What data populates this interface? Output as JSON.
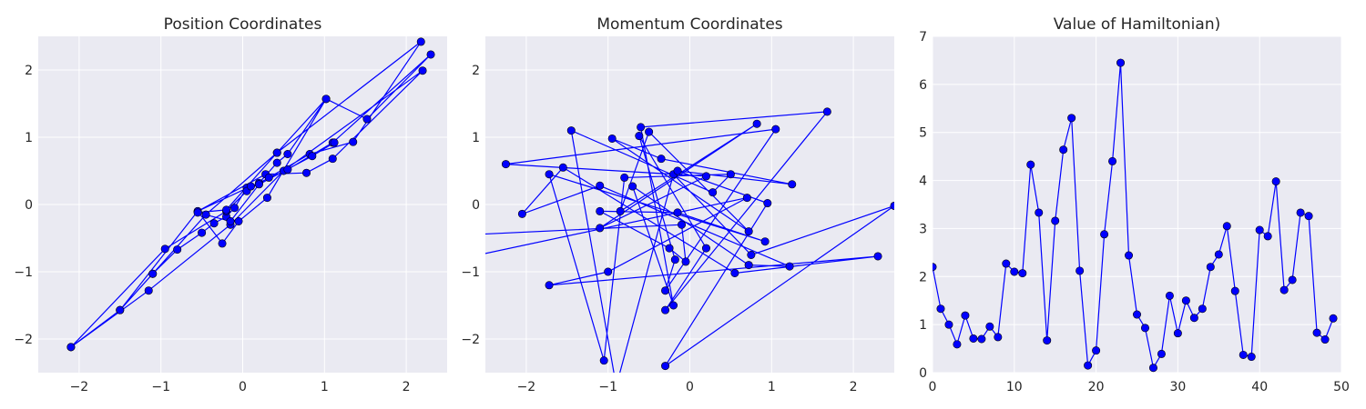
{
  "figure": {
    "line_color": "#0000ff",
    "marker_color": "#0000ff",
    "axes_background": "#eaeaf2",
    "grid_color": "#ffffff"
  },
  "chart_data": [
    {
      "type": "line",
      "title": "Position Coordinates",
      "xlabel": "",
      "ylabel": "",
      "xlim": [
        -2.5,
        2.5
      ],
      "ylim": [
        -2.5,
        2.5
      ],
      "xticks": [
        -2,
        -1,
        0,
        1,
        2
      ],
      "yticks": [
        -2,
        -1,
        0,
        1,
        2
      ],
      "xtick_labels": [
        "−2",
        "−1",
        "0",
        "1",
        "2"
      ],
      "ytick_labels": [
        "−2",
        "−1",
        "0",
        "1",
        "2"
      ],
      "grid": true,
      "x": [
        -2.1,
        -1.5,
        -1.1,
        -0.8,
        -0.5,
        -0.35,
        -0.2,
        -0.1,
        0.05,
        0.2,
        0.42,
        0.55,
        1.02,
        0.3,
        -0.05,
        -0.25,
        -0.55,
        0.28,
        0.78,
        1.1,
        2.2,
        0.5,
        -0.15,
        -1.15,
        -2.1,
        -0.95,
        -0.2,
        0.05,
        0.32,
        0.82,
        1.35,
        2.18,
        0.42,
        -0.45,
        -1.1,
        -1.5,
        -0.55,
        0.1,
        0.55,
        1.1,
        2.3,
        1.52,
        1.02,
        0.42,
        -0.2,
        -0.55,
        -0.15,
        0.2,
        0.85,
        1.12
      ],
      "y": [
        -2.12,
        -1.57,
        -1.03,
        -0.67,
        -0.42,
        -0.28,
        -0.18,
        -0.05,
        0.25,
        0.32,
        0.62,
        0.75,
        1.57,
        0.1,
        -0.25,
        -0.58,
        -0.1,
        0.45,
        0.47,
        0.68,
        1.99,
        0.5,
        -0.3,
        -1.28,
        -2.12,
        -0.66,
        -0.1,
        0.2,
        0.4,
        0.75,
        0.93,
        2.42,
        0.77,
        -0.15,
        -1.03,
        -1.57,
        -0.1,
        0.27,
        0.52,
        0.92,
        2.23,
        1.27,
        1.57,
        0.77,
        -0.08,
        -0.12,
        -0.25,
        0.3,
        0.72,
        0.92
      ]
    },
    {
      "type": "line",
      "title": "Momentum Coordinates",
      "xlabel": "",
      "ylabel": "",
      "xlim": [
        -2.5,
        2.5
      ],
      "ylim": [
        -2.5,
        2.5
      ],
      "xticks": [
        -2,
        -1,
        0,
        1,
        2
      ],
      "yticks": [
        -2,
        -1,
        0,
        1,
        2
      ],
      "xtick_labels": [
        "−2",
        "−1",
        "0",
        "1",
        "2"
      ],
      "ytick_labels": [
        "−2",
        "−1",
        "0",
        "1",
        "2"
      ],
      "grid": true,
      "x": [
        -2.7,
        -0.1,
        -0.05,
        -0.25,
        -1.1,
        -0.15,
        0.92,
        -1.72,
        -1.05,
        -0.8,
        0.5,
        0.28,
        -1.45,
        -0.9,
        -0.2,
        0.75,
        2.5,
        -0.3,
        0.95,
        -0.15,
        1.25,
        -0.35,
        -0.95,
        0.72,
        -0.5,
        -0.85,
        0.82,
        -1.1,
        0.2,
        -2.25,
        1.05,
        -0.3,
        -0.18,
        -0.62,
        0.2,
        -0.3,
        1.68,
        -0.6,
        -0.2,
        -0.7,
        0.72,
        1.22,
        -1.1,
        -2.05,
        -1.55,
        0.55,
        2.3,
        -1.72,
        -1.0,
        0.7,
        -2.7
      ],
      "y": [
        -0.45,
        -0.3,
        -0.85,
        -0.65,
        -0.1,
        -0.12,
        -0.55,
        0.45,
        -2.32,
        0.4,
        0.45,
        0.18,
        1.1,
        -2.7,
        0.45,
        -0.75,
        -0.02,
        -2.4,
        0.02,
        0.5,
        0.3,
        0.68,
        0.98,
        -0.4,
        1.08,
        -0.1,
        1.2,
        -0.35,
        0.42,
        0.6,
        1.12,
        -1.28,
        -0.82,
        1.02,
        -0.65,
        -1.57,
        1.38,
        1.15,
        -1.5,
        0.27,
        -0.9,
        -0.92,
        0.28,
        -0.14,
        0.55,
        -1.02,
        -0.77,
        -1.2,
        -1.0,
        0.1,
        -0.78
      ]
    },
    {
      "type": "line",
      "title": "Value of Hamiltonian)",
      "xlabel": "",
      "ylabel": "",
      "xlim": [
        0,
        50
      ],
      "ylim": [
        0,
        7
      ],
      "xticks": [
        0,
        10,
        20,
        30,
        40,
        50
      ],
      "yticks": [
        0,
        1,
        2,
        3,
        4,
        5,
        6,
        7
      ],
      "xtick_labels": [
        "0",
        "10",
        "20",
        "30",
        "40",
        "50"
      ],
      "ytick_labels": [
        "0",
        "1",
        "2",
        "3",
        "4",
        "5",
        "6",
        "7"
      ],
      "grid": true,
      "x": [
        0,
        1,
        2,
        3,
        4,
        5,
        6,
        7,
        8,
        9,
        10,
        11,
        12,
        13,
        14,
        15,
        16,
        17,
        18,
        19,
        20,
        21,
        22,
        23,
        24,
        25,
        26,
        27,
        28,
        29,
        30,
        31,
        32,
        33,
        34,
        35,
        36,
        37,
        38,
        39,
        40,
        41,
        42,
        43,
        44,
        45,
        46,
        47,
        48,
        49
      ],
      "y": [
        2.2,
        1.33,
        1.0,
        0.59,
        1.19,
        0.71,
        0.7,
        0.96,
        0.74,
        2.27,
        2.1,
        2.07,
        4.33,
        3.33,
        0.67,
        3.16,
        4.64,
        5.3,
        2.12,
        0.15,
        0.46,
        2.88,
        4.4,
        6.45,
        2.44,
        1.21,
        0.93,
        0.1,
        0.39,
        1.6,
        0.82,
        1.5,
        1.14,
        1.33,
        2.2,
        2.46,
        3.05,
        1.7,
        0.37,
        0.33,
        2.97,
        2.84,
        3.98,
        1.72,
        1.93,
        3.33,
        3.26,
        0.83,
        0.69,
        1.13
      ]
    }
  ]
}
